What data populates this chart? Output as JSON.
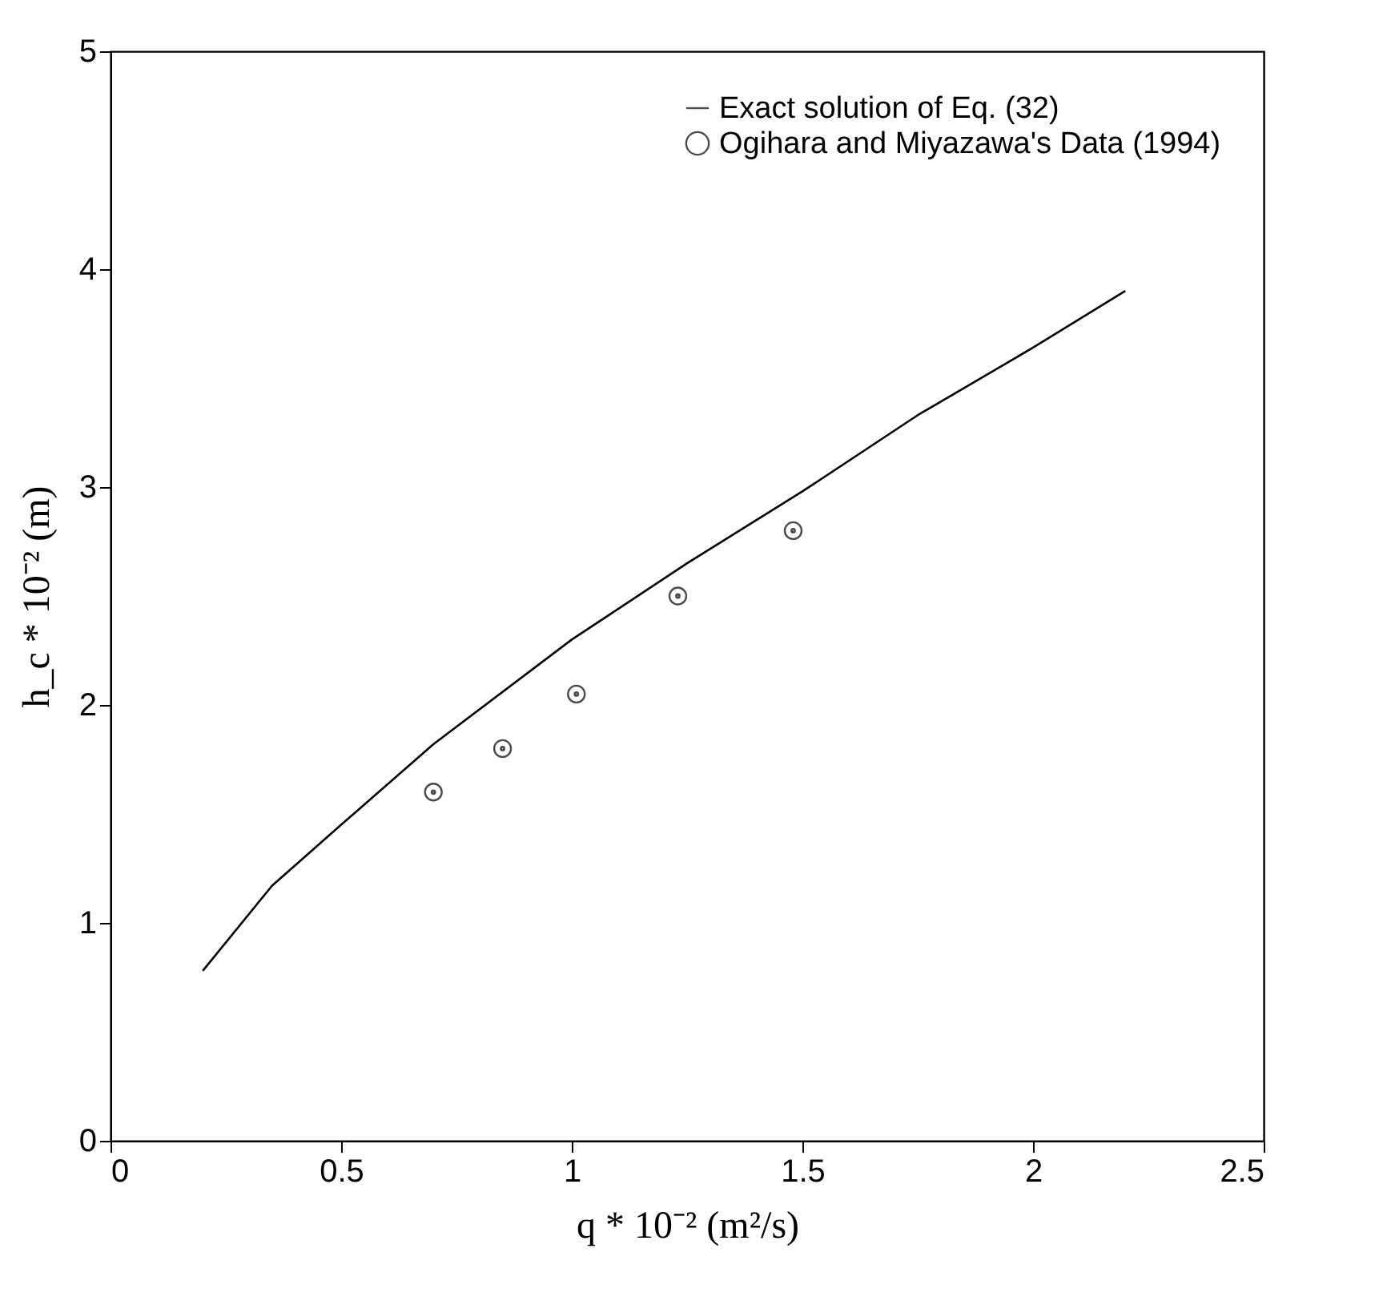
{
  "chart_data": {
    "type": "line",
    "xlabel": "q * 10⁻² (m²/s)",
    "ylabel": "h_c * 10⁻² (m)",
    "xlim": [
      0,
      2.5
    ],
    "xticks": [
      0,
      0.5,
      1,
      1.5,
      2,
      2.5
    ],
    "ylim": [
      0,
      5
    ],
    "yticks": [
      0,
      1,
      2,
      3,
      4,
      5
    ],
    "grid": false,
    "legend": "top right",
    "series": [
      {
        "name": "Exact solution of Eq. (32)",
        "color": "#000000",
        "marker": "none",
        "line_style": "solid",
        "x": [
          0.2,
          0.35,
          0.5,
          0.7,
          1.0,
          1.25,
          1.5,
          1.75,
          2.0,
          2.2
        ],
        "values": [
          0.78,
          1.17,
          1.45,
          1.82,
          2.3,
          2.65,
          2.98,
          3.33,
          3.64,
          3.9
        ]
      },
      {
        "name": "Ogihara and Miyazawa's Data (1994)",
        "type": "scatter",
        "color": "#000000",
        "marker": "circle",
        "x": [
          0.7,
          0.85,
          1.01,
          1.23,
          1.48
        ],
        "values": [
          1.6,
          1.8,
          2.05,
          2.5,
          2.8
        ]
      }
    ]
  }
}
